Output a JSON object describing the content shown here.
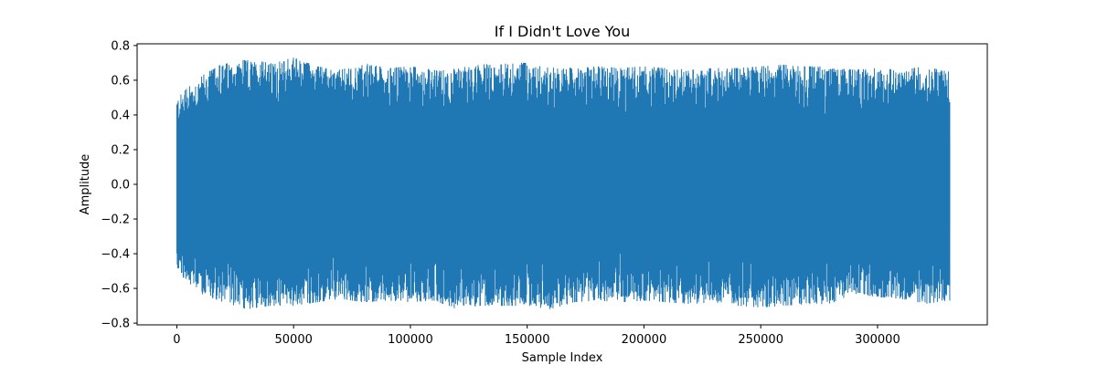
{
  "chart_data": {
    "type": "line",
    "title": "If I Didn't Love You",
    "xlabel": "Sample Index",
    "ylabel": "Amplitude",
    "xlim": [
      -17000,
      347000
    ],
    "ylim": [
      -0.81,
      0.81
    ],
    "x_ticks": [
      0,
      50000,
      100000,
      150000,
      200000,
      250000,
      300000
    ],
    "x_tick_labels": [
      "0",
      "50000",
      "100000",
      "150000",
      "200000",
      "250000",
      "300000"
    ],
    "y_ticks": [
      -0.8,
      -0.6,
      -0.4,
      -0.2,
      0.0,
      0.2,
      0.4,
      0.6,
      0.8
    ],
    "y_tick_labels": [
      "−0.8",
      "−0.6",
      "−0.4",
      "−0.2",
      "0.0",
      "0.2",
      "0.4",
      "0.6",
      "0.8"
    ],
    "grid": false,
    "series": [
      {
        "color": "#1f77b4",
        "sample_count": 331000,
        "envelope": {
          "x": [
            0,
            10000,
            20000,
            30000,
            40000,
            50000,
            60000,
            70000,
            80000,
            90000,
            100000,
            110000,
            120000,
            130000,
            140000,
            150000,
            160000,
            170000,
            180000,
            190000,
            200000,
            210000,
            220000,
            230000,
            240000,
            250000,
            260000,
            270000,
            280000,
            290000,
            300000,
            310000,
            320000,
            330000
          ],
          "max": [
            0.5,
            0.62,
            0.7,
            0.72,
            0.7,
            0.73,
            0.68,
            0.66,
            0.7,
            0.67,
            0.68,
            0.66,
            0.67,
            0.69,
            0.7,
            0.7,
            0.68,
            0.67,
            0.68,
            0.67,
            0.68,
            0.67,
            0.66,
            0.67,
            0.67,
            0.68,
            0.69,
            0.68,
            0.68,
            0.66,
            0.67,
            0.66,
            0.68,
            0.65
          ],
          "min": [
            -0.5,
            -0.63,
            -0.68,
            -0.72,
            -0.7,
            -0.7,
            -0.68,
            -0.66,
            -0.68,
            -0.67,
            -0.68,
            -0.67,
            -0.72,
            -0.7,
            -0.7,
            -0.7,
            -0.72,
            -0.68,
            -0.67,
            -0.68,
            -0.67,
            -0.68,
            -0.69,
            -0.68,
            -0.7,
            -0.71,
            -0.7,
            -0.69,
            -0.69,
            -0.63,
            -0.65,
            -0.66,
            -0.69,
            -0.67
          ]
        }
      }
    ]
  }
}
